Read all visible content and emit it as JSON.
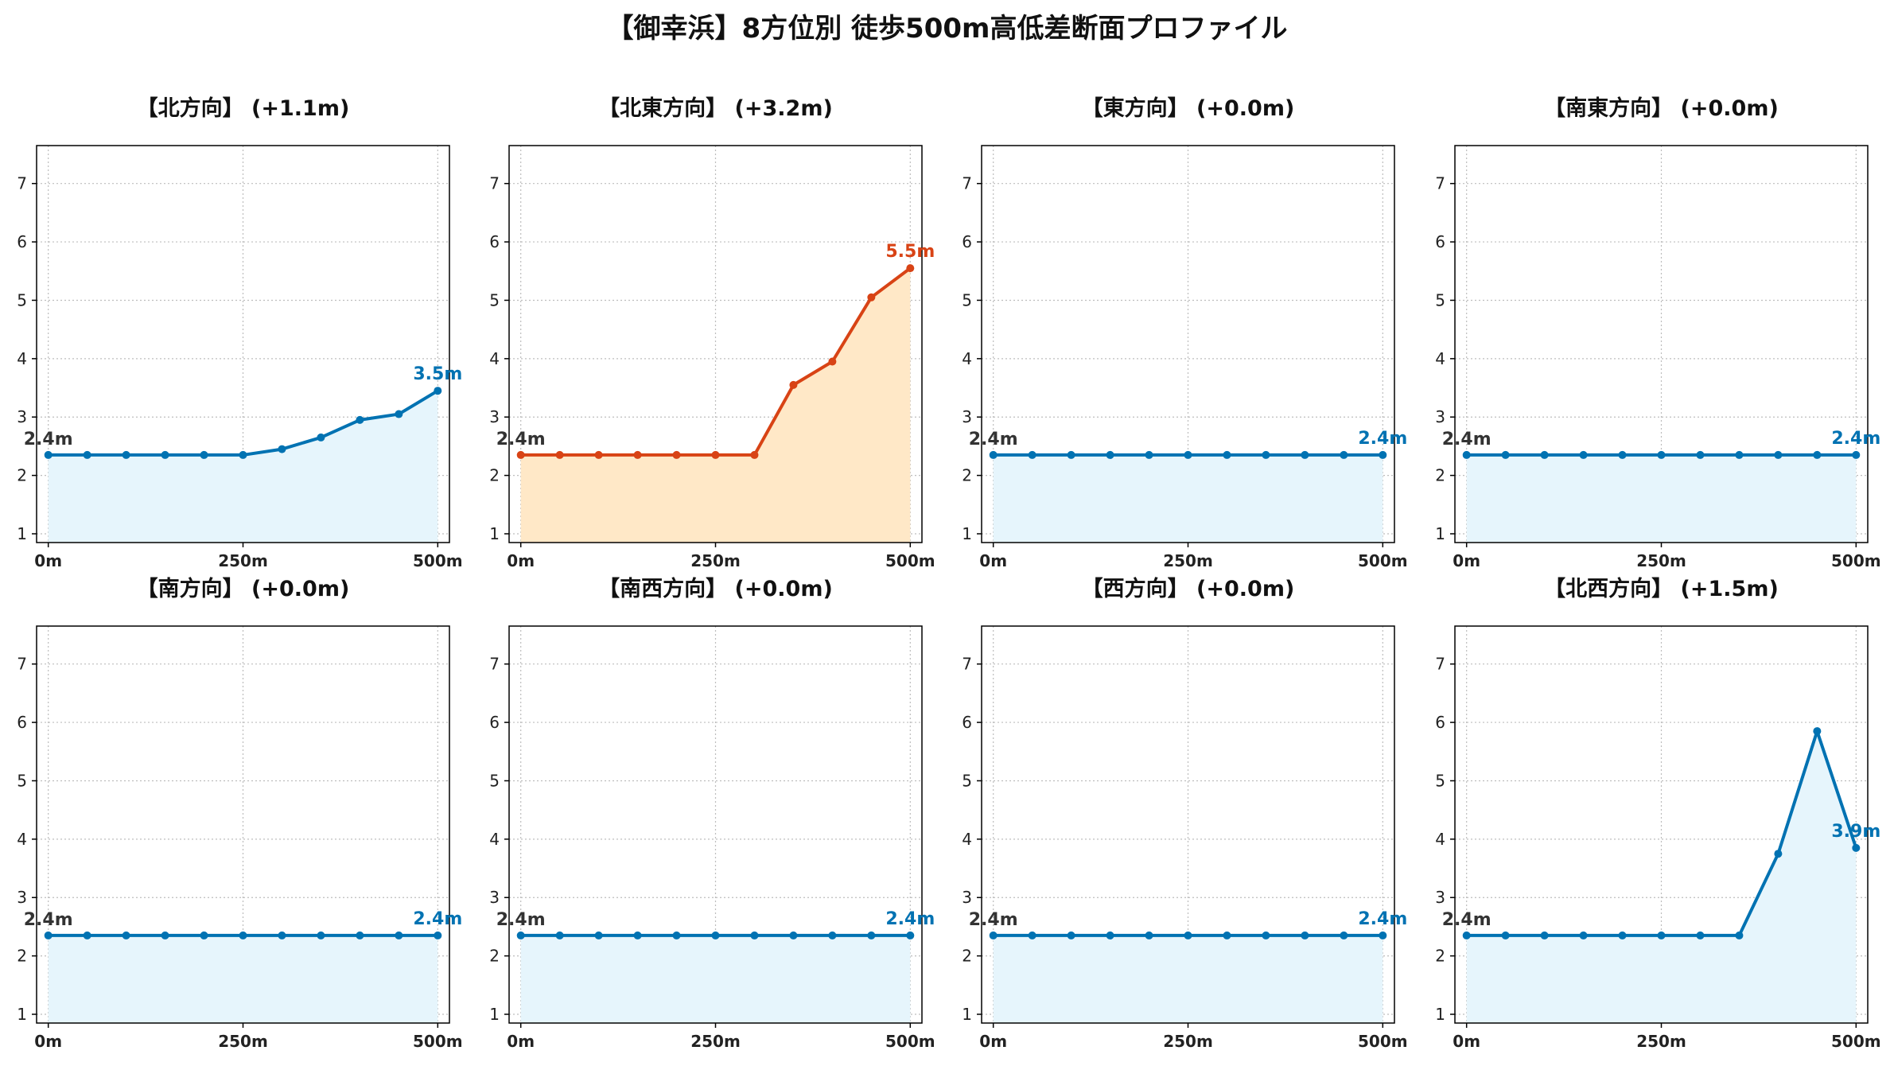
{
  "title": "【御幸浜】8方位別 徒歩500m高低差断面プロファイル",
  "colors": {
    "up_line": "#0072B2",
    "up_fill": "#E6F5FC",
    "steep_line": "#D84315",
    "steep_fill": "#FFE8C7",
    "grid": "#BDBDBD",
    "axis": "#000000",
    "label_start": "#333333"
  },
  "chart_data": [
    {
      "type": "area",
      "title": "【北方向】 (+1.1m)",
      "x": [
        0,
        50,
        100,
        150,
        200,
        250,
        300,
        350,
        400,
        450,
        500
      ],
      "values": [
        2.35,
        2.35,
        2.35,
        2.35,
        2.35,
        2.35,
        2.45,
        2.65,
        2.95,
        3.05,
        3.45
      ],
      "start_label": "2.4m",
      "end_label": "3.5m",
      "style": "blue",
      "xticks": [
        "0m",
        "250m",
        "500m"
      ],
      "yticks": [
        "1",
        "2",
        "3",
        "4",
        "5",
        "6",
        "7"
      ],
      "xlim": [
        -15,
        515
      ],
      "ylim": [
        0.85,
        7.65
      ],
      "grid": true
    },
    {
      "type": "area",
      "title": "【北東方向】 (+3.2m)",
      "x": [
        0,
        50,
        100,
        150,
        200,
        250,
        300,
        350,
        400,
        450,
        500
      ],
      "values": [
        2.35,
        2.35,
        2.35,
        2.35,
        2.35,
        2.35,
        2.35,
        3.55,
        3.95,
        5.05,
        5.55
      ],
      "start_label": "2.4m",
      "end_label": "5.5m",
      "style": "red",
      "xticks": [
        "0m",
        "250m",
        "500m"
      ],
      "yticks": [
        "1",
        "2",
        "3",
        "4",
        "5",
        "6",
        "7"
      ],
      "xlim": [
        -15,
        515
      ],
      "ylim": [
        0.85,
        7.65
      ],
      "grid": true
    },
    {
      "type": "area",
      "title": "【東方向】 (+0.0m)",
      "x": [
        0,
        50,
        100,
        150,
        200,
        250,
        300,
        350,
        400,
        450,
        500
      ],
      "values": [
        2.35,
        2.35,
        2.35,
        2.35,
        2.35,
        2.35,
        2.35,
        2.35,
        2.35,
        2.35,
        2.35
      ],
      "start_label": "2.4m",
      "end_label": "2.4m",
      "style": "blue",
      "xticks": [
        "0m",
        "250m",
        "500m"
      ],
      "yticks": [
        "1",
        "2",
        "3",
        "4",
        "5",
        "6",
        "7"
      ],
      "xlim": [
        -15,
        515
      ],
      "ylim": [
        0.85,
        7.65
      ],
      "grid": true
    },
    {
      "type": "area",
      "title": "【南東方向】 (+0.0m)",
      "x": [
        0,
        50,
        100,
        150,
        200,
        250,
        300,
        350,
        400,
        450,
        500
      ],
      "values": [
        2.35,
        2.35,
        2.35,
        2.35,
        2.35,
        2.35,
        2.35,
        2.35,
        2.35,
        2.35,
        2.35
      ],
      "start_label": "2.4m",
      "end_label": "2.4m",
      "style": "blue",
      "xticks": [
        "0m",
        "250m",
        "500m"
      ],
      "yticks": [
        "1",
        "2",
        "3",
        "4",
        "5",
        "6",
        "7"
      ],
      "xlim": [
        -15,
        515
      ],
      "ylim": [
        0.85,
        7.65
      ],
      "grid": true
    },
    {
      "type": "area",
      "title": "【南方向】 (+0.0m)",
      "x": [
        0,
        50,
        100,
        150,
        200,
        250,
        300,
        350,
        400,
        450,
        500
      ],
      "values": [
        2.35,
        2.35,
        2.35,
        2.35,
        2.35,
        2.35,
        2.35,
        2.35,
        2.35,
        2.35,
        2.35
      ],
      "start_label": "2.4m",
      "end_label": "2.4m",
      "style": "blue",
      "xticks": [
        "0m",
        "250m",
        "500m"
      ],
      "yticks": [
        "1",
        "2",
        "3",
        "4",
        "5",
        "6",
        "7"
      ],
      "xlim": [
        -15,
        515
      ],
      "ylim": [
        0.85,
        7.65
      ],
      "grid": true
    },
    {
      "type": "area",
      "title": "【南西方向】 (+0.0m)",
      "x": [
        0,
        50,
        100,
        150,
        200,
        250,
        300,
        350,
        400,
        450,
        500
      ],
      "values": [
        2.35,
        2.35,
        2.35,
        2.35,
        2.35,
        2.35,
        2.35,
        2.35,
        2.35,
        2.35,
        2.35
      ],
      "start_label": "2.4m",
      "end_label": "2.4m",
      "style": "blue",
      "xticks": [
        "0m",
        "250m",
        "500m"
      ],
      "yticks": [
        "1",
        "2",
        "3",
        "4",
        "5",
        "6",
        "7"
      ],
      "xlim": [
        -15,
        515
      ],
      "ylim": [
        0.85,
        7.65
      ],
      "grid": true
    },
    {
      "type": "area",
      "title": "【西方向】 (+0.0m)",
      "x": [
        0,
        50,
        100,
        150,
        200,
        250,
        300,
        350,
        400,
        450,
        500
      ],
      "values": [
        2.35,
        2.35,
        2.35,
        2.35,
        2.35,
        2.35,
        2.35,
        2.35,
        2.35,
        2.35,
        2.35
      ],
      "start_label": "2.4m",
      "end_label": "2.4m",
      "style": "blue",
      "xticks": [
        "0m",
        "250m",
        "500m"
      ],
      "yticks": [
        "1",
        "2",
        "3",
        "4",
        "5",
        "6",
        "7"
      ],
      "xlim": [
        -15,
        515
      ],
      "ylim": [
        0.85,
        7.65
      ],
      "grid": true
    },
    {
      "type": "area",
      "title": "【北西方向】 (+1.5m)",
      "x": [
        0,
        50,
        100,
        150,
        200,
        250,
        300,
        350,
        400,
        450,
        500
      ],
      "values": [
        2.35,
        2.35,
        2.35,
        2.35,
        2.35,
        2.35,
        2.35,
        2.35,
        3.75,
        5.85,
        3.85
      ],
      "start_label": "2.4m",
      "end_label": "3.9m",
      "style": "blue",
      "xticks": [
        "0m",
        "250m",
        "500m"
      ],
      "yticks": [
        "1",
        "2",
        "3",
        "4",
        "5",
        "6",
        "7"
      ],
      "xlim": [
        -15,
        515
      ],
      "ylim": [
        0.85,
        7.65
      ],
      "grid": true
    }
  ]
}
